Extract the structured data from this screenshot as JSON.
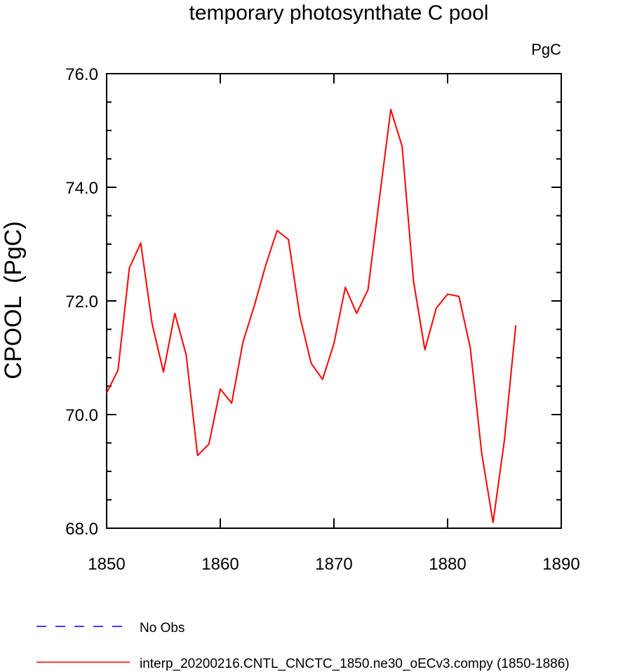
{
  "chart_data": {
    "type": "line",
    "title": "temporary photosynthate C pool",
    "units_label": "PgC",
    "ylabel": "CPOOL  (PgC)",
    "xlabel": "",
    "xlim": [
      1850,
      1890
    ],
    "ylim": [
      68.0,
      76.0
    ],
    "x_ticks": [
      1850,
      1860,
      1870,
      1880,
      1890
    ],
    "x_tick_labels": [
      "1850",
      "1860",
      "1870",
      "1880",
      "1890"
    ],
    "y_ticks": [
      68.0,
      70.0,
      72.0,
      74.0,
      76.0
    ],
    "y_tick_labels": [
      "68.0",
      "70.0",
      "72.0",
      "74.0",
      "76.0"
    ],
    "grid": false,
    "legend_placement": "bottom",
    "legend": [
      {
        "label": "No Obs",
        "color": "#0000ff",
        "style": "dashed"
      },
      {
        "label": "interp_20200216.CNTL_CNCTC_1850.ne30_oECv3.compy (1850-1886)",
        "color": "#ff0000",
        "style": "solid"
      }
    ],
    "series": [
      {
        "color": "#ff0000",
        "x": [
          1850,
          1851,
          1852,
          1853,
          1854,
          1855,
          1856,
          1857,
          1858,
          1859,
          1860,
          1861,
          1862,
          1863,
          1864,
          1865,
          1866,
          1867,
          1868,
          1869,
          1870,
          1871,
          1872,
          1873,
          1874,
          1875,
          1876,
          1877,
          1878,
          1879,
          1880,
          1881,
          1882,
          1883,
          1884,
          1885,
          1886
        ],
        "y": [
          70.38,
          70.78,
          72.58,
          73.02,
          71.6,
          70.75,
          71.78,
          71.05,
          69.28,
          69.48,
          70.45,
          70.2,
          71.28,
          71.92,
          72.63,
          73.24,
          73.08,
          71.73,
          70.9,
          70.62,
          71.25,
          72.24,
          71.78,
          72.2,
          73.8,
          75.37,
          74.72,
          72.35,
          71.14,
          71.87,
          72.12,
          72.08,
          71.17,
          69.32,
          68.1,
          69.55,
          71.57
        ]
      }
    ]
  }
}
